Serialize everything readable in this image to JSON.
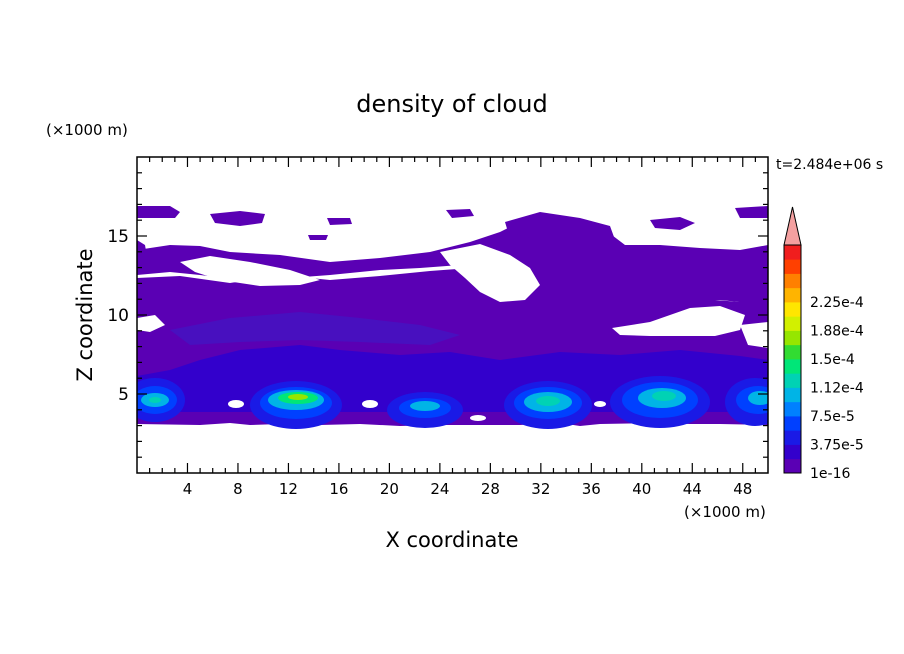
{
  "chart_data": {
    "type": "heatmap",
    "title": "density of cloud",
    "xlabel": "X coordinate",
    "ylabel": "Z coordinate",
    "x_unit": "(×1000 m)",
    "y_unit": "(×1000 m)",
    "time_label": "t=2.484e+06 s",
    "xlim": [
      0,
      50
    ],
    "ylim": [
      0,
      20
    ],
    "x_ticks": [
      "4",
      "8",
      "12",
      "16",
      "20",
      "24",
      "28",
      "32",
      "36",
      "40",
      "44",
      "48"
    ],
    "y_ticks": [
      "5",
      "10",
      "15"
    ],
    "colorbar": {
      "labels": [
        "1e-16",
        "3.75e-5",
        "7.5e-5",
        "1.12e-4",
        "1.5e-4",
        "1.88e-4",
        "2.25e-4"
      ],
      "colors": [
        "#5a00b4",
        "#3300cc",
        "#1a1ae6",
        "#0040ff",
        "#0080ff",
        "#00b4e6",
        "#00d2b4",
        "#00e678",
        "#32dc32",
        "#96e600",
        "#d2f000",
        "#ffe600",
        "#ffb400",
        "#ff8000",
        "#ff4000",
        "#f01e1e"
      ],
      "extend_color": "#f4a0a0"
    },
    "background_level": "1e-16",
    "cloud_layers": [
      {
        "z": [
          3.5,
          12
        ],
        "level": "1e-16",
        "note": "continuous low-density layer"
      },
      {
        "z": [
          12,
          17
        ],
        "level": "1e-16",
        "note": "patchy upper layer"
      }
    ],
    "dense_cells": [
      {
        "x": 1.5,
        "z": 4.8,
        "level": "1.12e-4"
      },
      {
        "x": 13,
        "z": 4.8,
        "level": "1.88e-4"
      },
      {
        "x": 23,
        "z": 4.4,
        "level": "1.12e-4"
      },
      {
        "x": 31,
        "z": 4.8,
        "level": "1.12e-4"
      },
      {
        "x": 40,
        "z": 5.2,
        "level": "1.12e-4"
      },
      {
        "x": 48.5,
        "z": 4.8,
        "level": "1.12e-4"
      }
    ]
  }
}
